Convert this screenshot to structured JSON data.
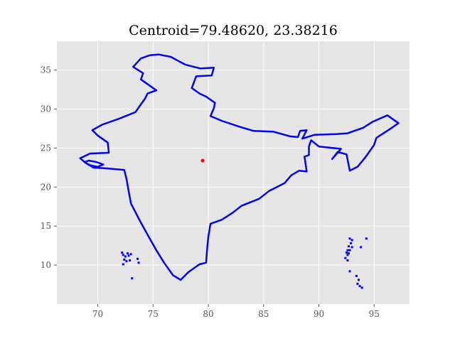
{
  "chart_data": {
    "type": "scatter",
    "title": "Centroid=79.48620, 23.38216",
    "xlabel": "",
    "ylabel": "",
    "xlim": [
      66.3,
      98.2
    ],
    "ylim": [
      5.0,
      38.7
    ],
    "x_ticks": [
      70,
      75,
      80,
      85,
      90,
      95
    ],
    "y_ticks": [
      10,
      15,
      20,
      25,
      30,
      35
    ],
    "grid": true,
    "background": "#e5e5e5",
    "grid_color": "#ffffff",
    "outline_color": "#0000ff",
    "centroid_color": "#ff0000",
    "centroid": {
      "x": 79.4862,
      "y": 23.38216
    },
    "series": [
      {
        "id": "mainland",
        "values": [
          [
            74.7,
            36.9
          ],
          [
            75.5,
            37.0
          ],
          [
            76.6,
            36.7
          ],
          [
            77.9,
            35.7
          ],
          [
            79.3,
            35.2
          ],
          [
            80.5,
            35.3
          ],
          [
            80.3,
            34.3
          ],
          [
            78.9,
            34.2
          ],
          [
            78.5,
            32.7
          ],
          [
            79.2,
            32.0
          ],
          [
            79.8,
            31.6
          ],
          [
            80.6,
            30.8
          ],
          [
            80.5,
            30.1
          ],
          [
            80.2,
            29.1
          ],
          [
            81.2,
            28.5
          ],
          [
            82.9,
            27.7
          ],
          [
            84.1,
            27.2
          ],
          [
            85.9,
            27.1
          ],
          [
            87.4,
            26.5
          ],
          [
            88.1,
            26.4
          ],
          [
            88.3,
            27.2
          ],
          [
            88.9,
            27.3
          ],
          [
            88.5,
            26.2
          ],
          [
            89.6,
            26.7
          ],
          [
            91.6,
            26.8
          ],
          [
            92.6,
            26.9
          ],
          [
            94.0,
            27.6
          ],
          [
            94.9,
            28.4
          ],
          [
            96.2,
            29.2
          ],
          [
            97.2,
            28.2
          ],
          [
            96.6,
            27.6
          ],
          [
            95.2,
            26.3
          ],
          [
            95.0,
            25.4
          ],
          [
            94.2,
            23.8
          ],
          [
            93.5,
            22.6
          ],
          [
            92.8,
            22.1
          ],
          [
            92.5,
            24.2
          ],
          [
            91.7,
            24.5
          ],
          [
            91.2,
            23.6
          ],
          [
            92.0,
            24.9
          ],
          [
            90.0,
            25.2
          ],
          [
            89.3,
            26.0
          ],
          [
            89.1,
            25.2
          ],
          [
            89.1,
            24.1
          ],
          [
            88.7,
            23.9
          ],
          [
            88.9,
            22.0
          ],
          [
            88.2,
            22.1
          ],
          [
            87.5,
            21.5
          ],
          [
            86.9,
            20.5
          ],
          [
            85.5,
            19.5
          ],
          [
            84.6,
            18.5
          ],
          [
            83.0,
            17.6
          ],
          [
            82.2,
            16.7
          ],
          [
            81.2,
            15.8
          ],
          [
            80.2,
            15.3
          ],
          [
            80.0,
            13.6
          ],
          [
            79.9,
            12.2
          ],
          [
            79.8,
            10.3
          ],
          [
            79.2,
            10.1
          ],
          [
            78.2,
            9.1
          ],
          [
            77.5,
            8.1
          ],
          [
            76.8,
            8.7
          ],
          [
            76.0,
            10.3
          ],
          [
            75.3,
            11.9
          ],
          [
            74.5,
            13.9
          ],
          [
            73.8,
            15.7
          ],
          [
            73.0,
            17.9
          ],
          [
            72.8,
            19.4
          ],
          [
            72.6,
            21.0
          ],
          [
            72.4,
            22.2
          ],
          [
            70.8,
            22.4
          ],
          [
            69.6,
            22.5
          ],
          [
            68.9,
            23.1
          ],
          [
            68.4,
            23.7
          ],
          [
            69.3,
            24.3
          ],
          [
            71.0,
            24.4
          ],
          [
            70.9,
            25.7
          ],
          [
            70.0,
            26.6
          ],
          [
            69.5,
            27.3
          ],
          [
            70.4,
            28.0
          ],
          [
            72.0,
            28.8
          ],
          [
            73.4,
            29.6
          ],
          [
            74.3,
            31.4
          ],
          [
            74.5,
            32.0
          ],
          [
            75.3,
            32.4
          ],
          [
            73.9,
            33.8
          ],
          [
            74.1,
            34.6
          ],
          [
            73.2,
            35.4
          ],
          [
            73.9,
            36.5
          ],
          [
            74.7,
            36.9
          ]
        ]
      },
      {
        "id": "kutch",
        "values": [
          [
            68.8,
            23.2
          ],
          [
            69.3,
            22.8
          ],
          [
            70.0,
            22.6
          ],
          [
            70.5,
            22.9
          ],
          [
            69.9,
            23.2
          ],
          [
            69.2,
            23.4
          ],
          [
            68.8,
            23.2
          ]
        ]
      },
      {
        "id": "lakshadweep",
        "values": [
          [
            72.2,
            11.6
          ],
          [
            72.3,
            11.3
          ],
          [
            72.5,
            11.1
          ],
          [
            72.7,
            11.5
          ],
          [
            72.8,
            11.2
          ],
          [
            73.0,
            11.4
          ],
          [
            72.4,
            10.7
          ],
          [
            72.6,
            10.5
          ],
          [
            72.9,
            10.6
          ],
          [
            73.6,
            10.8
          ],
          [
            73.7,
            10.3
          ],
          [
            72.3,
            10.1
          ],
          [
            73.1,
            8.3
          ]
        ]
      },
      {
        "id": "andaman_nicobar",
        "values": [
          [
            92.8,
            13.4
          ],
          [
            93.0,
            13.2
          ],
          [
            92.9,
            12.8
          ],
          [
            92.7,
            12.4
          ],
          [
            93.0,
            12.3
          ],
          [
            92.8,
            11.9
          ],
          [
            92.5,
            11.6
          ],
          [
            92.6,
            11.9
          ],
          [
            92.7,
            11.5
          ],
          [
            92.6,
            11.3
          ],
          [
            92.4,
            10.9
          ],
          [
            92.6,
            10.6
          ],
          [
            94.3,
            13.4
          ],
          [
            93.8,
            12.3
          ],
          [
            92.8,
            9.2
          ],
          [
            93.4,
            8.6
          ],
          [
            93.6,
            8.1
          ],
          [
            93.5,
            7.6
          ],
          [
            93.9,
            7.1
          ],
          [
            93.7,
            7.3
          ]
        ]
      }
    ]
  }
}
